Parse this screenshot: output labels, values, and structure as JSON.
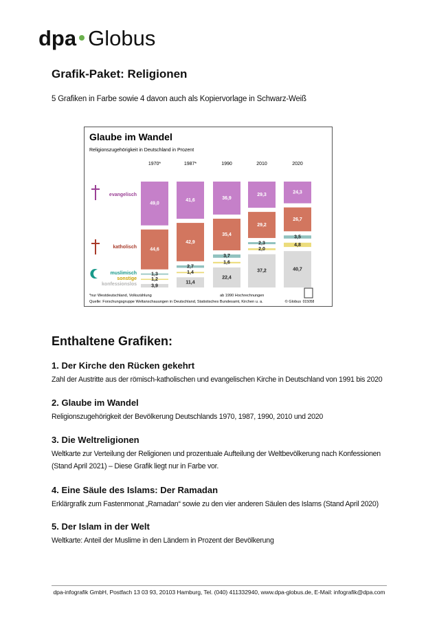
{
  "header": {
    "logo_left": "dpa",
    "logo_right": "Globus",
    "title": "Grafik-Paket: Religionen",
    "intro": "5 Grafiken in Farbe sowie 4 davon auch als Kopiervorlage in Schwarz-Weiß"
  },
  "chart_data": {
    "type": "stacked-bar",
    "title": "Glaube im Wandel",
    "subtitle": "Religionszugehörigkeit in Deutschland in Prozent",
    "categories": [
      "1970*",
      "1987*",
      "1990",
      "2010",
      "2020"
    ],
    "series": [
      {
        "name": "evangelisch",
        "color": "#c580c9",
        "label_color": "#9a3f95",
        "value_label_color": "#ffffff",
        "values": [
          49.0,
          41.6,
          36.9,
          29.3,
          24.3
        ],
        "value_labels": [
          "49,0",
          "41,6",
          "36,9",
          "29,3",
          "24,3"
        ]
      },
      {
        "name": "katholisch",
        "color": "#d2765f",
        "label_color": "#a83a2a",
        "value_label_color": "#ffffff",
        "values": [
          44.6,
          42.9,
          35.4,
          29.2,
          26.7
        ],
        "value_labels": [
          "44,6",
          "42,9",
          "35,4",
          "29,2",
          "26,7"
        ]
      },
      {
        "name": "muslimisch",
        "color": "#91c2bf",
        "label_color": "#19998a",
        "value_label_color": "#222222",
        "values": [
          1.3,
          2.7,
          3.7,
          2.3,
          3.5
        ],
        "value_labels": [
          "1,3",
          "2,7",
          "3,7",
          "2,3",
          "3,5"
        ]
      },
      {
        "name": "sonstige",
        "color": "#ecdc7c",
        "label_color": "#c9a200",
        "value_label_color": "#222222",
        "values": [
          1.2,
          1.4,
          1.6,
          2.0,
          4.8
        ],
        "value_labels": [
          "1,2",
          "1,4",
          "1,6",
          "2,0",
          "4,8"
        ]
      },
      {
        "name": "konfessionslos",
        "color": "#dadada",
        "label_color": "#b5b5b5",
        "value_label_color": "#222222",
        "values": [
          3.9,
          11.4,
          22.4,
          37.2,
          40.7
        ],
        "value_labels": [
          "3,9",
          "11,4",
          "22,4",
          "37,2",
          "40,7"
        ]
      }
    ],
    "notes": [
      "*nur Westdeutschland, Volkszählung",
      "ab 1990 Hochrechnungen",
      "Quelle: Forschungsgruppe Weltanschauungen in Deutschland, Statistisches Bundesamt, Kirchen u. a."
    ],
    "credit": "© Globus",
    "id": "015058"
  },
  "contents": {
    "heading": "Enthaltene Grafiken:",
    "items": [
      {
        "title": "1. Der Kirche den Rücken gekehrt",
        "text": "Zahl der Austritte aus der römisch-katholischen und evangelischen Kirche in Deutschland von 1991 bis 2020"
      },
      {
        "title": "2. Glaube im Wandel",
        "text": "Religionszugehörigkeit der Bevölkerung Deutschlands 1970, 1987, 1990, 2010 und 2020"
      },
      {
        "title": "3. Die Weltreligionen",
        "text": "Weltkarte zur Verteilung der Religionen und prozentuale Aufteilung der Weltbevölkerung nach Konfessionen (Stand April 2021) – Diese Grafik liegt nur in Farbe vor."
      },
      {
        "title": "4. Eine Säule des Islams: Der Ramadan",
        "text": "Erklärgrafik zum Fastenmonat „Ramadan“ sowie zu den vier anderen Säulen des Islams (Stand April 2020)"
      },
      {
        "title": "5. Der Islam in der Welt",
        "text": "Weltkarte: Anteil der Muslime in den Ländern in Prozent der Bevölkerung"
      }
    ]
  },
  "footer": "dpa-infografik GmbH, Postfach 13 03 93, 20103 Hamburg, Tel. (040) 411332940, www.dpa-globus.de, E-Mail: infografik@dpa.com"
}
